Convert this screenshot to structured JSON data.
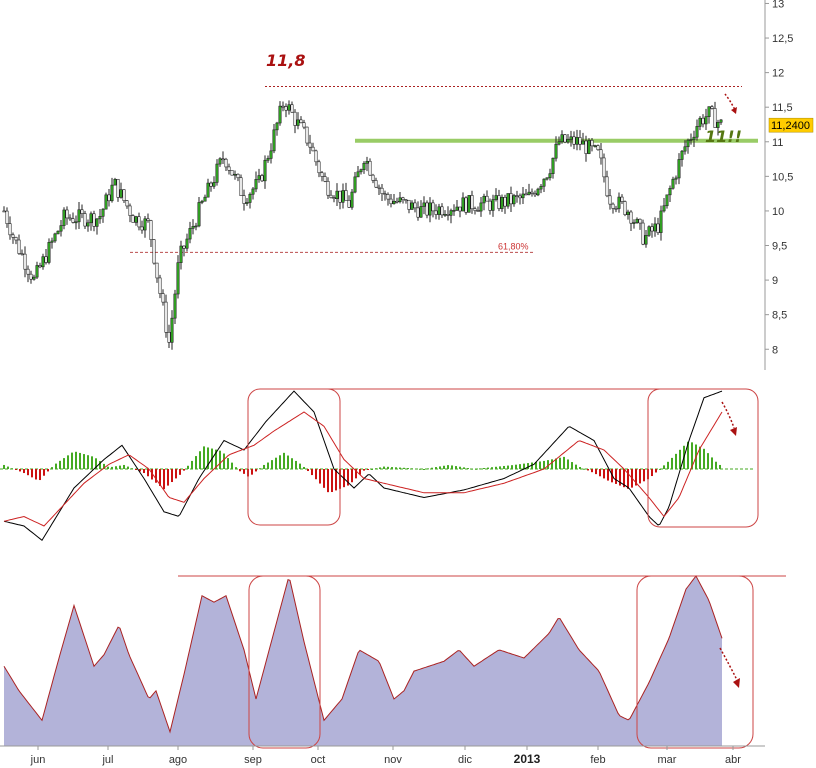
{
  "chart_data": [
    {
      "type": "candlestick",
      "panel": "price",
      "y_ticks": [
        "8",
        "8,5",
        "9",
        "9,5",
        "10",
        "10,5",
        "11",
        "11,5",
        "12",
        "12,5",
        "13"
      ],
      "y_tick_values": [
        8,
        8.5,
        9,
        9.5,
        10,
        10.5,
        11,
        11.5,
        12,
        12.5,
        13
      ],
      "ylim": [
        7.7,
        13.05
      ],
      "last_price_label": "11,2400",
      "last_price": 11.24,
      "annotations": {
        "high_label": "11,8",
        "high_level": 11.8,
        "support_label": "11!!",
        "support_level": 11.0,
        "fib_label": "61,80%",
        "fib_level": 9.4
      },
      "close_anchors": [
        [
          0,
          10.0
        ],
        [
          10,
          9.6
        ],
        [
          30,
          9.0
        ],
        [
          60,
          9.9
        ],
        [
          95,
          9.9
        ],
        [
          110,
          10.4
        ],
        [
          130,
          9.9
        ],
        [
          145,
          9.8
        ],
        [
          155,
          8.9
        ],
        [
          165,
          8.1
        ],
        [
          175,
          9.3
        ],
        [
          195,
          10.0
        ],
        [
          220,
          10.8
        ],
        [
          240,
          10.2
        ],
        [
          255,
          10.4
        ],
        [
          268,
          11.0
        ],
        [
          280,
          11.6
        ],
        [
          292,
          11.3
        ],
        [
          305,
          11.0
        ],
        [
          320,
          10.4
        ],
        [
          345,
          10.1
        ],
        [
          360,
          10.8
        ],
        [
          380,
          10.2
        ],
        [
          420,
          10.0
        ],
        [
          460,
          10.1
        ],
        [
          490,
          10.1
        ],
        [
          525,
          10.2
        ],
        [
          545,
          10.6
        ],
        [
          555,
          11.0
        ],
        [
          575,
          11.0
        ],
        [
          595,
          10.8
        ],
        [
          605,
          10.2
        ],
        [
          625,
          10.0
        ],
        [
          640,
          9.6
        ],
        [
          655,
          9.8
        ],
        [
          668,
          10.4
        ],
        [
          680,
          10.9
        ],
        [
          695,
          11.3
        ],
        [
          705,
          11.4
        ],
        [
          718,
          11.24
        ]
      ],
      "categories": [
        "jun",
        "jul",
        "ago",
        "sep",
        "oct",
        "nov",
        "dic",
        "2013",
        "feb",
        "mar",
        "abr"
      ]
    },
    {
      "type": "bar+line",
      "panel": "macd",
      "series": [
        {
          "kind": "line",
          "color": "#000000",
          "anchors": [
            [
              0,
              -0.55
            ],
            [
              20,
              -0.6
            ],
            [
              38,
              -0.75
            ],
            [
              70,
              -0.2
            ],
            [
              100,
              0.1
            ],
            [
              118,
              0.25
            ],
            [
              140,
              -0.1
            ],
            [
              160,
              -0.45
            ],
            [
              175,
              -0.5
            ],
            [
              195,
              -0.1
            ],
            [
              220,
              0.3
            ],
            [
              240,
              0.2
            ],
            [
              262,
              0.5
            ],
            [
              290,
              0.82
            ],
            [
              310,
              0.6
            ],
            [
              330,
              0.0
            ],
            [
              350,
              -0.2
            ],
            [
              365,
              -0.05
            ],
            [
              380,
              -0.2
            ],
            [
              420,
              -0.3
            ],
            [
              460,
              -0.22
            ],
            [
              500,
              -0.1
            ],
            [
              530,
              0.05
            ],
            [
              565,
              0.45
            ],
            [
              590,
              0.3
            ],
            [
              610,
              -0.1
            ],
            [
              625,
              -0.2
            ],
            [
              645,
              -0.5
            ],
            [
              655,
              -0.6
            ],
            [
              665,
              -0.4
            ],
            [
              685,
              0.3
            ],
            [
              700,
              0.75
            ],
            [
              718,
              0.82
            ]
          ]
        },
        {
          "kind": "line",
          "color": "#cc2222",
          "anchors": [
            [
              0,
              -0.55
            ],
            [
              20,
              -0.5
            ],
            [
              40,
              -0.6
            ],
            [
              80,
              -0.15
            ],
            [
              105,
              0.05
            ],
            [
              125,
              0.15
            ],
            [
              145,
              0.0
            ],
            [
              165,
              -0.3
            ],
            [
              180,
              -0.35
            ],
            [
              200,
              -0.1
            ],
            [
              225,
              0.15
            ],
            [
              250,
              0.25
            ],
            [
              270,
              0.4
            ],
            [
              300,
              0.6
            ],
            [
              320,
              0.45
            ],
            [
              340,
              0.1
            ],
            [
              360,
              -0.1
            ],
            [
              380,
              -0.15
            ],
            [
              420,
              -0.25
            ],
            [
              460,
              -0.25
            ],
            [
              500,
              -0.15
            ],
            [
              540,
              0.0
            ],
            [
              575,
              0.3
            ],
            [
              600,
              0.2
            ],
            [
              620,
              0.0
            ],
            [
              645,
              -0.3
            ],
            [
              660,
              -0.5
            ],
            [
              675,
              -0.3
            ],
            [
              695,
              0.2
            ],
            [
              718,
              0.6
            ]
          ]
        },
        {
          "kind": "histogram",
          "positive_color": "#44aa22",
          "negative_color": "#cc1111",
          "anchors": [
            [
              0,
              0.05
            ],
            [
              20,
              -0.05
            ],
            [
              35,
              -0.15
            ],
            [
              50,
              0.05
            ],
            [
              70,
              0.22
            ],
            [
              90,
              0.15
            ],
            [
              105,
              0.02
            ],
            [
              120,
              0.05
            ],
            [
              140,
              -0.05
            ],
            [
              160,
              -0.25
            ],
            [
              178,
              -0.05
            ],
            [
              200,
              0.28
            ],
            [
              218,
              0.22
            ],
            [
              235,
              -0.02
            ],
            [
              245,
              -0.1
            ],
            [
              260,
              0.05
            ],
            [
              280,
              0.2
            ],
            [
              298,
              0.05
            ],
            [
              310,
              -0.1
            ],
            [
              325,
              -0.3
            ],
            [
              345,
              -0.2
            ],
            [
              360,
              -0.02
            ],
            [
              380,
              0.03
            ],
            [
              420,
              0.0
            ],
            [
              445,
              0.05
            ],
            [
              470,
              0.0
            ],
            [
              510,
              0.05
            ],
            [
              540,
              0.1
            ],
            [
              560,
              0.15
            ],
            [
              575,
              0.03
            ],
            [
              590,
              -0.05
            ],
            [
              605,
              -0.15
            ],
            [
              625,
              -0.25
            ],
            [
              645,
              -0.12
            ],
            [
              665,
              0.1
            ],
            [
              685,
              0.35
            ],
            [
              700,
              0.25
            ],
            [
              715,
              0.05
            ]
          ]
        }
      ],
      "ylim": [
        -1.0,
        1.0
      ]
    },
    {
      "type": "area",
      "panel": "oscillator",
      "color": "#b3b3d9",
      "line_color": "#aa2222",
      "anchors": [
        [
          0,
          0.45
        ],
        [
          15,
          0.3
        ],
        [
          38,
          0.12
        ],
        [
          55,
          0.5
        ],
        [
          70,
          0.82
        ],
        [
          90,
          0.45
        ],
        [
          100,
          0.52
        ],
        [
          115,
          0.7
        ],
        [
          125,
          0.52
        ],
        [
          145,
          0.25
        ],
        [
          152,
          0.3
        ],
        [
          166,
          0.05
        ],
        [
          180,
          0.4
        ],
        [
          198,
          0.88
        ],
        [
          210,
          0.84
        ],
        [
          222,
          0.88
        ],
        [
          240,
          0.55
        ],
        [
          252,
          0.25
        ],
        [
          285,
          1.0
        ],
        [
          300,
          0.6
        ],
        [
          320,
          0.12
        ],
        [
          338,
          0.25
        ],
        [
          355,
          0.55
        ],
        [
          375,
          0.48
        ],
        [
          390,
          0.25
        ],
        [
          400,
          0.3
        ],
        [
          410,
          0.42
        ],
        [
          440,
          0.48
        ],
        [
          455,
          0.55
        ],
        [
          470,
          0.45
        ],
        [
          495,
          0.55
        ],
        [
          520,
          0.5
        ],
        [
          545,
          0.65
        ],
        [
          555,
          0.75
        ],
        [
          575,
          0.55
        ],
        [
          595,
          0.42
        ],
        [
          615,
          0.15
        ],
        [
          625,
          0.12
        ],
        [
          645,
          0.35
        ],
        [
          665,
          0.62
        ],
        [
          682,
          0.92
        ],
        [
          692,
          1.0
        ],
        [
          705,
          0.85
        ],
        [
          718,
          0.62
        ]
      ],
      "ylim": [
        0,
        1.0
      ]
    }
  ],
  "colors": {
    "support": "#99cc66",
    "high_line": "#aa2222",
    "box": "#cc4444",
    "last_price_bg": "#ffcc00"
  }
}
